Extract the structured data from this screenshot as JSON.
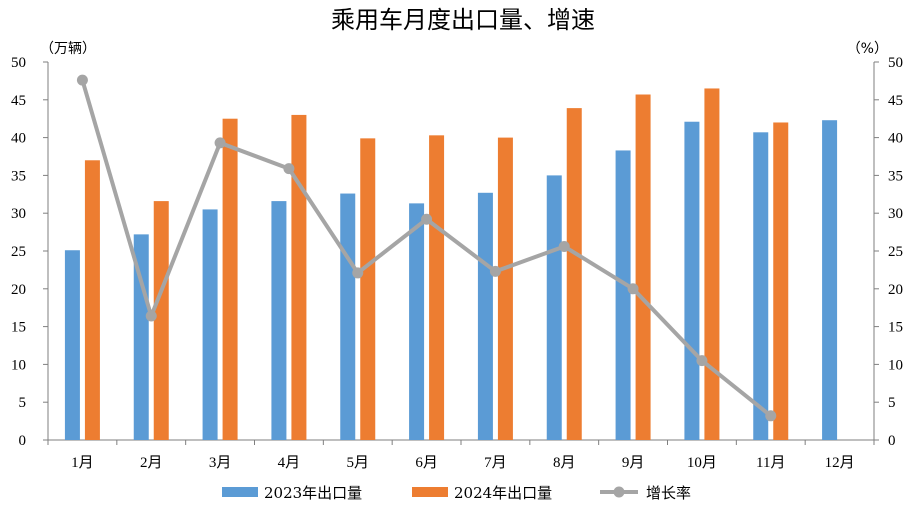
{
  "chart_data": {
    "type": "bar",
    "title": "乘用车月度出口量、增速",
    "categories": [
      "1月",
      "2月",
      "3月",
      "4月",
      "5月",
      "6月",
      "7月",
      "8月",
      "9月",
      "10月",
      "11月",
      "12月"
    ],
    "series": [
      {
        "name": "2023年出口量",
        "type": "bar",
        "axis": "left",
        "color": "#5b9bd5",
        "values": [
          25.1,
          27.2,
          30.5,
          31.6,
          32.6,
          31.3,
          32.7,
          35.0,
          38.3,
          42.1,
          40.7,
          42.3
        ]
      },
      {
        "name": "2024年出口量",
        "type": "bar",
        "axis": "left",
        "color": "#ed7d31",
        "values": [
          37.0,
          31.6,
          42.5,
          43.0,
          39.9,
          40.3,
          40.0,
          43.9,
          45.7,
          46.5,
          42.0,
          null
        ]
      },
      {
        "name": "增长率",
        "type": "line",
        "axis": "right",
        "color": "#a5a5a5",
        "values": [
          47.6,
          16.4,
          39.3,
          35.9,
          22.1,
          29.2,
          22.3,
          25.6,
          20.0,
          10.5,
          3.2,
          null
        ]
      }
    ],
    "yleft": {
      "unit": "（万辆）",
      "min": 0,
      "max": 50,
      "step": 5
    },
    "yright": {
      "unit": "（%）",
      "min": 0,
      "max": 50,
      "step": 5
    },
    "legend": "bottom",
    "grid": false
  }
}
